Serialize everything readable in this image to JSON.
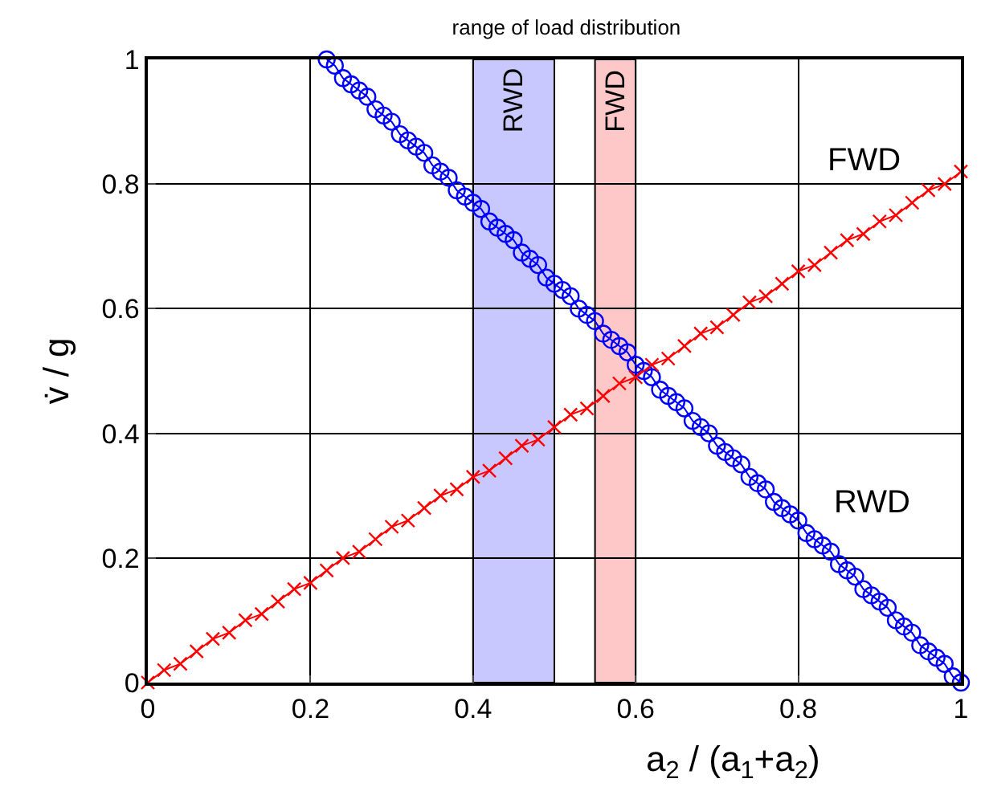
{
  "chart_data": {
    "type": "line",
    "title": "range of load distribution",
    "xlabel": "a$_{2}$ / (a$_{1}$+a$_{2}$)",
    "ylabel": "v̇ / g",
    "xlim": [
      0,
      1
    ],
    "ylim": [
      0,
      1
    ],
    "xticks": [
      0,
      0.2,
      0.4,
      0.6,
      0.8,
      1
    ],
    "yticks": [
      0,
      0.2,
      0.4,
      0.6,
      0.8,
      1
    ],
    "grid": true,
    "series": [
      {
        "marker": "circle",
        "color": "#0000ff",
        "x": [
          0.22,
          0.23,
          0.24,
          0.25,
          0.26,
          0.27,
          0.28,
          0.29,
          0.3,
          0.31,
          0.32,
          0.33,
          0.34,
          0.35,
          0.36,
          0.37,
          0.38,
          0.39,
          0.4,
          0.41,
          0.42,
          0.43,
          0.44,
          0.45,
          0.46,
          0.47,
          0.48,
          0.49,
          0.5,
          0.51,
          0.52,
          0.53,
          0.54,
          0.55,
          0.56,
          0.57,
          0.58,
          0.59,
          0.6,
          0.61,
          0.62,
          0.63,
          0.64,
          0.65,
          0.66,
          0.67,
          0.68,
          0.69,
          0.7,
          0.71,
          0.72,
          0.73,
          0.74,
          0.75,
          0.76,
          0.77,
          0.78,
          0.79,
          0.8,
          0.81,
          0.82,
          0.83,
          0.84,
          0.85,
          0.86,
          0.87,
          0.88,
          0.89,
          0.9,
          0.91,
          0.92,
          0.93,
          0.94,
          0.95,
          0.96,
          0.97,
          0.98,
          0.99,
          1.0
        ],
        "values": [
          1.0,
          0.99,
          0.97,
          0.96,
          0.95,
          0.94,
          0.92,
          0.91,
          0.9,
          0.88,
          0.87,
          0.86,
          0.85,
          0.83,
          0.82,
          0.81,
          0.79,
          0.78,
          0.77,
          0.76,
          0.74,
          0.73,
          0.72,
          0.71,
          0.69,
          0.68,
          0.67,
          0.65,
          0.64,
          0.63,
          0.62,
          0.6,
          0.59,
          0.58,
          0.56,
          0.55,
          0.54,
          0.53,
          0.51,
          0.5,
          0.49,
          0.47,
          0.46,
          0.45,
          0.44,
          0.42,
          0.41,
          0.4,
          0.38,
          0.37,
          0.36,
          0.35,
          0.33,
          0.32,
          0.31,
          0.29,
          0.28,
          0.27,
          0.26,
          0.24,
          0.23,
          0.22,
          0.21,
          0.19,
          0.18,
          0.17,
          0.15,
          0.14,
          0.13,
          0.12,
          0.1,
          0.09,
          0.08,
          0.06,
          0.05,
          0.04,
          0.03,
          0.01,
          0.0
        ]
      },
      {
        "marker": "cross",
        "color": "#ff0000",
        "x": [
          0,
          0.02,
          0.04,
          0.06,
          0.08,
          0.1,
          0.12,
          0.14,
          0.16,
          0.18,
          0.2,
          0.22,
          0.24,
          0.26,
          0.28,
          0.3,
          0.32,
          0.34,
          0.36,
          0.38,
          0.4,
          0.42,
          0.44,
          0.46,
          0.48,
          0.5,
          0.52,
          0.54,
          0.56,
          0.58,
          0.6,
          0.62,
          0.64,
          0.66,
          0.68,
          0.7,
          0.72,
          0.74,
          0.76,
          0.78,
          0.8,
          0.82,
          0.84,
          0.86,
          0.88,
          0.9,
          0.92,
          0.94,
          0.96,
          0.98,
          1.0
        ],
        "values": [
          0,
          0.02,
          0.03,
          0.05,
          0.07,
          0.08,
          0.1,
          0.11,
          0.13,
          0.15,
          0.16,
          0.18,
          0.2,
          0.21,
          0.23,
          0.25,
          0.26,
          0.28,
          0.3,
          0.31,
          0.33,
          0.34,
          0.36,
          0.38,
          0.39,
          0.41,
          0.43,
          0.44,
          0.46,
          0.48,
          0.49,
          0.51,
          0.52,
          0.54,
          0.56,
          0.57,
          0.59,
          0.61,
          0.62,
          0.64,
          0.66,
          0.67,
          0.69,
          0.71,
          0.72,
          0.74,
          0.75,
          0.77,
          0.79,
          0.8,
          0.82
        ]
      }
    ],
    "bands": [
      {
        "axis": "x",
        "from": 0.4,
        "to": 0.5,
        "label": "RWD",
        "color": "#c8c8ff"
      },
      {
        "axis": "x",
        "from": 0.55,
        "to": 0.6,
        "label": "FWD",
        "color": "#ffc8c8"
      }
    ],
    "annotations": [
      "FWD",
      "RWD"
    ]
  }
}
